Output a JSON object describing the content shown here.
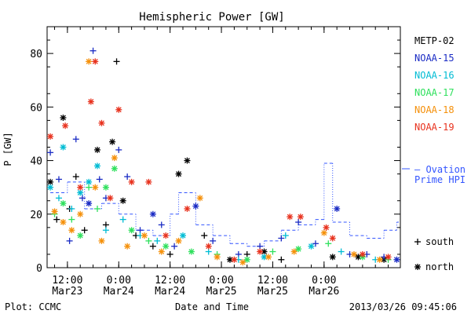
{
  "chart_data": {
    "type": "scatter",
    "title": "Hemispheric Power [GW]",
    "xlabel": "Date and Time",
    "ylabel": "P [GW]",
    "ylim": [
      0,
      90
    ],
    "xlim": [
      "2013-03-23 07:15",
      "2013-03-26 17:50"
    ],
    "x_ticks": [
      {
        "at": "2013-03-23 12:00",
        "top": "12:00",
        "bottom": "Mar23"
      },
      {
        "at": "2013-03-24 00:00",
        "top": "0:00",
        "bottom": "Mar24"
      },
      {
        "at": "2013-03-24 12:00",
        "top": "12:00",
        "bottom": "Mar24"
      },
      {
        "at": "2013-03-25 00:00",
        "top": "0:00",
        "bottom": "Mar25"
      },
      {
        "at": "2013-03-25 12:00",
        "top": "12:00",
        "bottom": "Mar25"
      },
      {
        "at": "2013-03-26 00:00",
        "top": "0:00",
        "bottom": "Mar26"
      }
    ],
    "y_ticks": [
      0,
      20,
      40,
      60,
      80
    ],
    "legend_position": "right",
    "legend": [
      "METP-02",
      "NOAA-15",
      "NOAA-16",
      "NOAA-17",
      "NOAA-18",
      "NOAA-19"
    ],
    "ovation_label": [
      "— Ovation",
      "Prime HPI"
    ],
    "marker_legend": [
      {
        "symbol": "+",
        "label": "south"
      },
      {
        "symbol": "*",
        "label": "north"
      }
    ],
    "footer_left": "Plot: CCMC",
    "footer_right": "2013/03/26 09:45:06",
    "series": [
      {
        "name": "METP-02",
        "color": "#000000",
        "points": [
          [
            "2013-03-23 08:00",
            32,
            "north"
          ],
          [
            "2013-03-23 09:30",
            18,
            "south"
          ],
          [
            "2013-03-23 11:00",
            56,
            "north"
          ],
          [
            "2013-03-23 12:30",
            22,
            "south"
          ],
          [
            "2013-03-23 14:00",
            34,
            "south"
          ],
          [
            "2013-03-23 16:00",
            14,
            "south"
          ],
          [
            "2013-03-23 19:00",
            44,
            "north"
          ],
          [
            "2013-03-23 21:00",
            16,
            "south"
          ],
          [
            "2013-03-23 22:30",
            47,
            "north"
          ],
          [
            "2013-03-23 23:30",
            77,
            "south"
          ],
          [
            "2013-03-24 01:00",
            25,
            "north"
          ],
          [
            "2013-03-24 04:00",
            12,
            "south"
          ],
          [
            "2013-03-24 08:00",
            8,
            "south"
          ],
          [
            "2013-03-24 12:00",
            5,
            "south"
          ],
          [
            "2013-03-24 14:00",
            35,
            "north"
          ],
          [
            "2013-03-24 16:00",
            40,
            "north"
          ],
          [
            "2013-03-24 20:00",
            12,
            "south"
          ],
          [
            "2013-03-25 02:00",
            3,
            "north"
          ],
          [
            "2013-03-25 06:00",
            5,
            "south"
          ],
          [
            "2013-03-25 10:00",
            6,
            "north"
          ],
          [
            "2013-03-25 14:00",
            3,
            "south"
          ],
          [
            "2013-03-26 02:00",
            4,
            "north"
          ],
          [
            "2013-03-26 08:00",
            4,
            "north"
          ],
          [
            "2013-03-26 14:00",
            3,
            "north"
          ]
        ]
      },
      {
        "name": "NOAA-15",
        "color": "#1a2bc4",
        "points": [
          [
            "2013-03-23 08:00",
            43,
            "south"
          ],
          [
            "2013-03-23 10:00",
            33,
            "south"
          ],
          [
            "2013-03-23 12:30",
            10,
            "south"
          ],
          [
            "2013-03-23 14:00",
            48,
            "south"
          ],
          [
            "2013-03-23 15:30",
            26,
            "south"
          ],
          [
            "2013-03-23 17:00",
            24,
            "north"
          ],
          [
            "2013-03-23 18:00",
            81,
            "south"
          ],
          [
            "2013-03-23 19:30",
            33,
            "south"
          ],
          [
            "2013-03-23 21:00",
            26,
            "south"
          ],
          [
            "2013-03-24 00:00",
            44,
            "south"
          ],
          [
            "2013-03-24 02:00",
            34,
            "south"
          ],
          [
            "2013-03-24 05:00",
            14,
            "south"
          ],
          [
            "2013-03-24 08:00",
            20,
            "north"
          ],
          [
            "2013-03-24 10:00",
            16,
            "south"
          ],
          [
            "2013-03-24 13:00",
            8,
            "south"
          ],
          [
            "2013-03-24 18:00",
            23,
            "north"
          ],
          [
            "2013-03-24 22:00",
            10,
            "south"
          ],
          [
            "2013-03-25 04:00",
            5,
            "south"
          ],
          [
            "2013-03-25 09:00",
            8,
            "south"
          ],
          [
            "2013-03-25 14:00",
            11,
            "south"
          ],
          [
            "2013-03-25 18:00",
            17,
            "south"
          ],
          [
            "2013-03-25 22:00",
            9,
            "south"
          ],
          [
            "2013-03-26 03:00",
            22,
            "north"
          ],
          [
            "2013-03-26 06:00",
            5,
            "south"
          ],
          [
            "2013-03-26 10:00",
            5,
            "south"
          ],
          [
            "2013-03-26 14:00",
            4,
            "south"
          ],
          [
            "2013-03-26 17:00",
            3,
            "north"
          ]
        ]
      },
      {
        "name": "NOAA-16",
        "color": "#00bcd4",
        "points": [
          [
            "2013-03-23 08:00",
            30,
            "north"
          ],
          [
            "2013-03-23 10:00",
            26,
            "south"
          ],
          [
            "2013-03-23 11:00",
            45,
            "north"
          ],
          [
            "2013-03-23 13:00",
            22,
            "south"
          ],
          [
            "2013-03-23 15:00",
            28,
            "north"
          ],
          [
            "2013-03-23 17:00",
            32,
            "north"
          ],
          [
            "2013-03-23 19:00",
            38,
            "north"
          ],
          [
            "2013-03-23 21:00",
            14,
            "south"
          ],
          [
            "2013-03-24 01:00",
            18,
            "south"
          ],
          [
            "2013-03-24 05:00",
            12,
            "south"
          ],
          [
            "2013-03-24 09:00",
            10,
            "south"
          ],
          [
            "2013-03-24 15:00",
            12,
            "north"
          ],
          [
            "2013-03-24 21:00",
            6,
            "south"
          ],
          [
            "2013-03-25 04:00",
            3,
            "south"
          ],
          [
            "2013-03-25 10:00",
            4,
            "north"
          ],
          [
            "2013-03-25 15:00",
            12,
            "south"
          ],
          [
            "2013-03-25 21:00",
            8,
            "north"
          ],
          [
            "2013-03-26 04:00",
            6,
            "south"
          ],
          [
            "2013-03-26 12:00",
            3,
            "south"
          ]
        ]
      },
      {
        "name": "NOAA-17",
        "color": "#2ee05c",
        "points": [
          [
            "2013-03-23 09:00",
            20,
            "south"
          ],
          [
            "2013-03-23 11:00",
            24,
            "north"
          ],
          [
            "2013-03-23 13:00",
            18,
            "south"
          ],
          [
            "2013-03-23 15:00",
            12,
            "north"
          ],
          [
            "2013-03-23 17:00",
            30,
            "south"
          ],
          [
            "2013-03-23 19:00",
            22,
            "south"
          ],
          [
            "2013-03-23 21:00",
            30,
            "north"
          ],
          [
            "2013-03-23 23:00",
            37,
            "north"
          ],
          [
            "2013-03-24 03:00",
            14,
            "north"
          ],
          [
            "2013-03-24 07:00",
            10,
            "south"
          ],
          [
            "2013-03-24 11:00",
            8,
            "north"
          ],
          [
            "2013-03-24 17:00",
            6,
            "north"
          ],
          [
            "2013-03-24 23:00",
            5,
            "south"
          ],
          [
            "2013-03-25 06:00",
            3,
            "north"
          ],
          [
            "2013-03-25 12:00",
            6,
            "south"
          ],
          [
            "2013-03-25 18:00",
            7,
            "north"
          ],
          [
            "2013-03-26 01:00",
            9,
            "south"
          ],
          [
            "2013-03-26 09:00",
            4,
            "north"
          ],
          [
            "2013-03-26 15:00",
            3,
            "south"
          ]
        ]
      },
      {
        "name": "NOAA-18",
        "color": "#f5900a",
        "points": [
          [
            "2013-03-23 09:00",
            21,
            "north"
          ],
          [
            "2013-03-23 11:00",
            17,
            "north"
          ],
          [
            "2013-03-23 13:00",
            14,
            "north"
          ],
          [
            "2013-03-23 15:00",
            20,
            "north"
          ],
          [
            "2013-03-23 17:00",
            77,
            "north"
          ],
          [
            "2013-03-23 18:30",
            30,
            "north"
          ],
          [
            "2013-03-23 20:00",
            10,
            "north"
          ],
          [
            "2013-03-23 23:00",
            41,
            "north"
          ],
          [
            "2013-03-24 02:00",
            8,
            "north"
          ],
          [
            "2013-03-24 06:00",
            12,
            "north"
          ],
          [
            "2013-03-24 10:00",
            6,
            "north"
          ],
          [
            "2013-03-24 14:00",
            10,
            "north"
          ],
          [
            "2013-03-24 19:00",
            26,
            "north"
          ],
          [
            "2013-03-24 23:00",
            4,
            "north"
          ],
          [
            "2013-03-25 05:00",
            2,
            "north"
          ],
          [
            "2013-03-25 11:00",
            4,
            "north"
          ],
          [
            "2013-03-25 17:00",
            6,
            "north"
          ],
          [
            "2013-03-26 00:00",
            13,
            "north"
          ],
          [
            "2013-03-26 07:00",
            5,
            "north"
          ],
          [
            "2013-03-26 13:00",
            3,
            "north"
          ]
        ]
      },
      {
        "name": "NOAA-19",
        "color": "#e8321e",
        "points": [
          [
            "2013-03-23 08:00",
            49,
            "north"
          ],
          [
            "2013-03-23 11:30",
            53,
            "north"
          ],
          [
            "2013-03-23 15:00",
            30,
            "north"
          ],
          [
            "2013-03-23 17:30",
            62,
            "north"
          ],
          [
            "2013-03-23 18:30",
            77,
            "north"
          ],
          [
            "2013-03-23 20:00",
            54,
            "north"
          ],
          [
            "2013-03-23 22:00",
            26,
            "north"
          ],
          [
            "2013-03-24 00:00",
            59,
            "north"
          ],
          [
            "2013-03-24 03:00",
            32,
            "north"
          ],
          [
            "2013-03-24 07:00",
            32,
            "north"
          ],
          [
            "2013-03-24 11:00",
            12,
            "north"
          ],
          [
            "2013-03-24 16:00",
            22,
            "north"
          ],
          [
            "2013-03-24 21:00",
            8,
            "north"
          ],
          [
            "2013-03-25 03:00",
            3,
            "north"
          ],
          [
            "2013-03-25 09:00",
            6,
            "north"
          ],
          [
            "2013-03-25 16:00",
            19,
            "north"
          ],
          [
            "2013-03-25 18:30",
            19,
            "north"
          ],
          [
            "2013-03-26 00:30",
            15,
            "north"
          ],
          [
            "2013-03-26 02:00",
            11,
            "north"
          ],
          [
            "2013-03-26 09:00",
            5,
            "north"
          ],
          [
            "2013-03-26 15:00",
            4,
            "north"
          ]
        ]
      }
    ],
    "ovation_hpi": {
      "color": "#3355ff",
      "points": [
        [
          "2013-03-23 08:00",
          28
        ],
        [
          "2013-03-23 12:00",
          32
        ],
        [
          "2013-03-23 16:00",
          22
        ],
        [
          "2013-03-23 20:00",
          24
        ],
        [
          "2013-03-24 00:00",
          20
        ],
        [
          "2013-03-24 04:00",
          14
        ],
        [
          "2013-03-24 08:00",
          12
        ],
        [
          "2013-03-24 12:00",
          20
        ],
        [
          "2013-03-24 14:00",
          28
        ],
        [
          "2013-03-24 18:00",
          16
        ],
        [
          "2013-03-24 22:00",
          12
        ],
        [
          "2013-03-25 02:00",
          9
        ],
        [
          "2013-03-25 06:00",
          8
        ],
        [
          "2013-03-25 10:00",
          10
        ],
        [
          "2013-03-25 14:00",
          14
        ],
        [
          "2013-03-25 18:00",
          16
        ],
        [
          "2013-03-25 22:00",
          18
        ],
        [
          "2013-03-26 00:00",
          39
        ],
        [
          "2013-03-26 02:00",
          17
        ],
        [
          "2013-03-26 06:00",
          12
        ],
        [
          "2013-03-26 10:00",
          11
        ],
        [
          "2013-03-26 14:00",
          14
        ],
        [
          "2013-03-26 17:00",
          17
        ]
      ]
    }
  }
}
